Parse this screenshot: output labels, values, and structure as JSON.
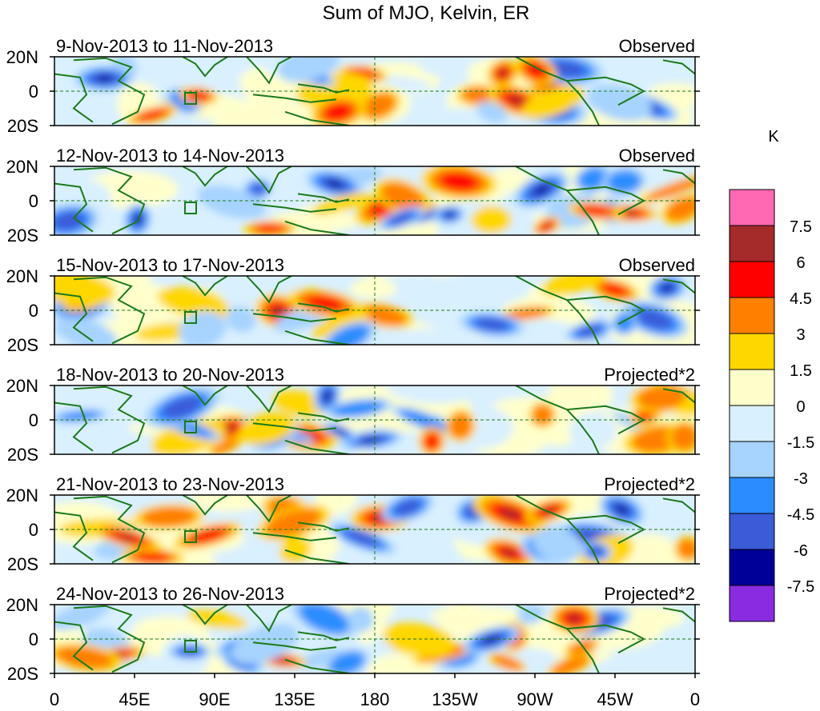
{
  "title": "Sum of MJO, Kelvin, ER",
  "panels": [
    {
      "date_range": "9-Nov-2013 to 11-Nov-2013",
      "label": "Observed"
    },
    {
      "date_range": "12-Nov-2013 to 14-Nov-2013",
      "label": "Observed"
    },
    {
      "date_range": "15-Nov-2013 to 17-Nov-2013",
      "label": "Observed"
    },
    {
      "date_range": "18-Nov-2013 to 20-Nov-2013",
      "label": "Projected*2"
    },
    {
      "date_range": "21-Nov-2013 to 23-Nov-2013",
      "label": "Projected*2"
    },
    {
      "date_range": "24-Nov-2013 to 26-Nov-2013",
      "label": "Projected*2"
    }
  ],
  "lat_ticks": [
    "20N",
    "0",
    "20S"
  ],
  "lon_ticks": [
    "0",
    "45E",
    "90E",
    "135E",
    "180",
    "135W",
    "90W",
    "45W",
    "0"
  ],
  "colorbar": {
    "unit": "K",
    "labels": [
      "7.5",
      "6",
      "4.5",
      "3",
      "1.5",
      "0",
      "-1.5",
      "-3",
      "-4.5",
      "-6",
      "-7.5"
    ],
    "colors": [
      "#ff69b4",
      "#a52a2a",
      "#ff0000",
      "#ff7f00",
      "#ffd700",
      "#ffffcc",
      "#d9f0ff",
      "#a6d3ff",
      "#2b8cff",
      "#3b5bd9",
      "#000099",
      "#8a2be2"
    ]
  },
  "colors": {
    "coast": "#1a7a1a",
    "warm": [
      "#ffd700",
      "#ff7f00",
      "#ff0000",
      "#a52a2a",
      "#ff69b4"
    ],
    "cool": [
      "#a6d3ff",
      "#2b8cff",
      "#3b5bd9",
      "#000099",
      "#8a2be2"
    ],
    "light_warm": "#ffffcc",
    "light_cool": "#d9f0ff"
  }
}
